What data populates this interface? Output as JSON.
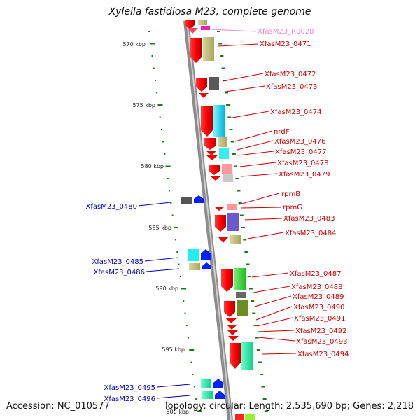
{
  "title": "Xylella fastidiosa M23, complete genome",
  "accession": "Accession: NC_010577",
  "topology": "Topology: circular; Length: 2,535,690 bp; Genes: 2,218",
  "ticks": [
    "570 kbp",
    "575 kbp",
    "580 kbp",
    "585 kbp",
    "590 kbp",
    "595 kbp",
    "600 kbp"
  ],
  "genes_right": [
    "XfasM23_R0028",
    "XfasM23_0471",
    "XfasM23_0472",
    "XfasM23_0473",
    "XfasM23_0474",
    "nrdF",
    "XfasM23_0476",
    "XfasM23_0477",
    "XfasM23_0478",
    "XfasM23_0479",
    "rpmB",
    "rpmG",
    "XfasM23_0483",
    "XfasM23_0484",
    "XfasM23_0487",
    "XfasM23_0488",
    "XfasM23_0489",
    "XfasM23_0490",
    "XfasM23_0491",
    "XfasM23_0492",
    "XfasM23_0493",
    "XfasM23_0494"
  ],
  "genes_left": [
    "XfasM23_0480",
    "XfasM23_0485",
    "XfasM23_0486",
    "XfasM23_0495",
    "XfasM23_0496"
  ],
  "colors": {
    "forward_label": "#cc0000",
    "reverse_label": "#0000bb",
    "rna_label": "#ee88cc",
    "backbone": "#8c8c8c",
    "tick": "#1a7a1a"
  }
}
